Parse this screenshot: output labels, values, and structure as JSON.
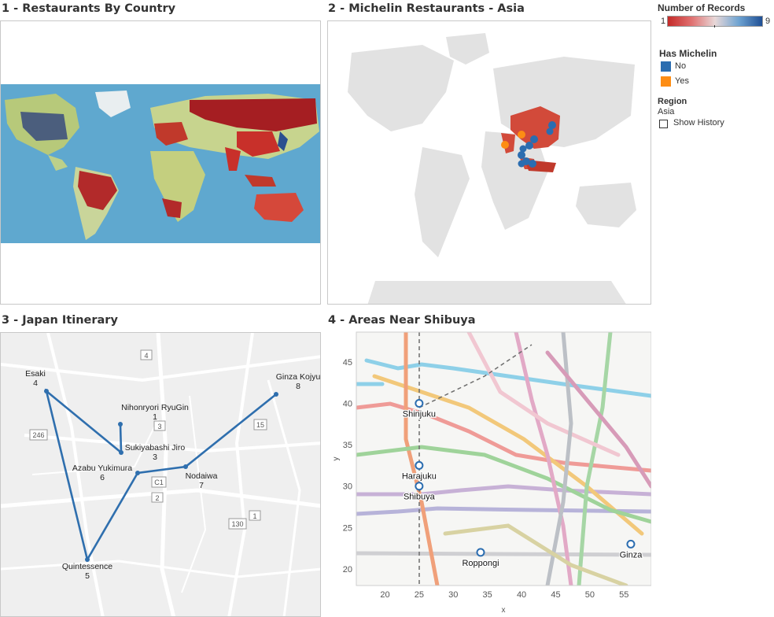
{
  "panels": {
    "p1_title": "1 - Restaurants By Country",
    "p2_title": "2 - Michelin Restaurants - Asia",
    "p3_title": "3 - Japan Itinerary",
    "p4_title": "4 - Areas Near Shibuya"
  },
  "legend": {
    "records_title": "Number of Records",
    "records_min": "1",
    "records_max": "9",
    "michelin_title": "Has Michelin",
    "michelin_no": "No",
    "michelin_yes": "Yes",
    "region_title": "Region",
    "region_value": "Asia",
    "show_history": "Show History"
  },
  "colors": {
    "red": "#d73027",
    "blue": "#2b6db0",
    "orange": "#fd8d14",
    "map_bg": "#e6e6e6"
  },
  "itinerary": {
    "stops": [
      {
        "name": "Esaki",
        "order": "4"
      },
      {
        "name": "Nihonryori RyuGin",
        "order": "1"
      },
      {
        "name": "Sukiyabashi Jiro",
        "order": "3"
      },
      {
        "name": "Azabu Yukimura",
        "order": "6"
      },
      {
        "name": "Nodaiwa",
        "order": "7"
      },
      {
        "name": "Ginza Kojyu",
        "order": "8"
      },
      {
        "name": "Quintessence",
        "order": "5"
      }
    ],
    "road_labels": [
      "4",
      "246",
      "15",
      "3",
      "C1",
      "2",
      "1",
      "130"
    ]
  },
  "chart_data": {
    "type": "scatter",
    "title": "4 - Areas Near Shibuya",
    "xlabel": "x",
    "ylabel": "y",
    "xticks": [
      20,
      25,
      30,
      35,
      40,
      45,
      50,
      55
    ],
    "yticks": [
      20,
      25,
      30,
      35,
      40,
      45
    ],
    "xlim": [
      15.8,
      59.0
    ],
    "ylim": [
      18.0,
      48.6
    ],
    "points": [
      {
        "label": "Shinjuku",
        "x": 25.0,
        "y": 40.0
      },
      {
        "label": "Harajuku",
        "x": 25.0,
        "y": 32.5
      },
      {
        "label": "Shibuya",
        "x": 25.0,
        "y": 30.0
      },
      {
        "label": "Roppongi",
        "x": 34.0,
        "y": 22.0
      },
      {
        "label": "Ginza",
        "x": 56.0,
        "y": 23.0
      }
    ]
  }
}
